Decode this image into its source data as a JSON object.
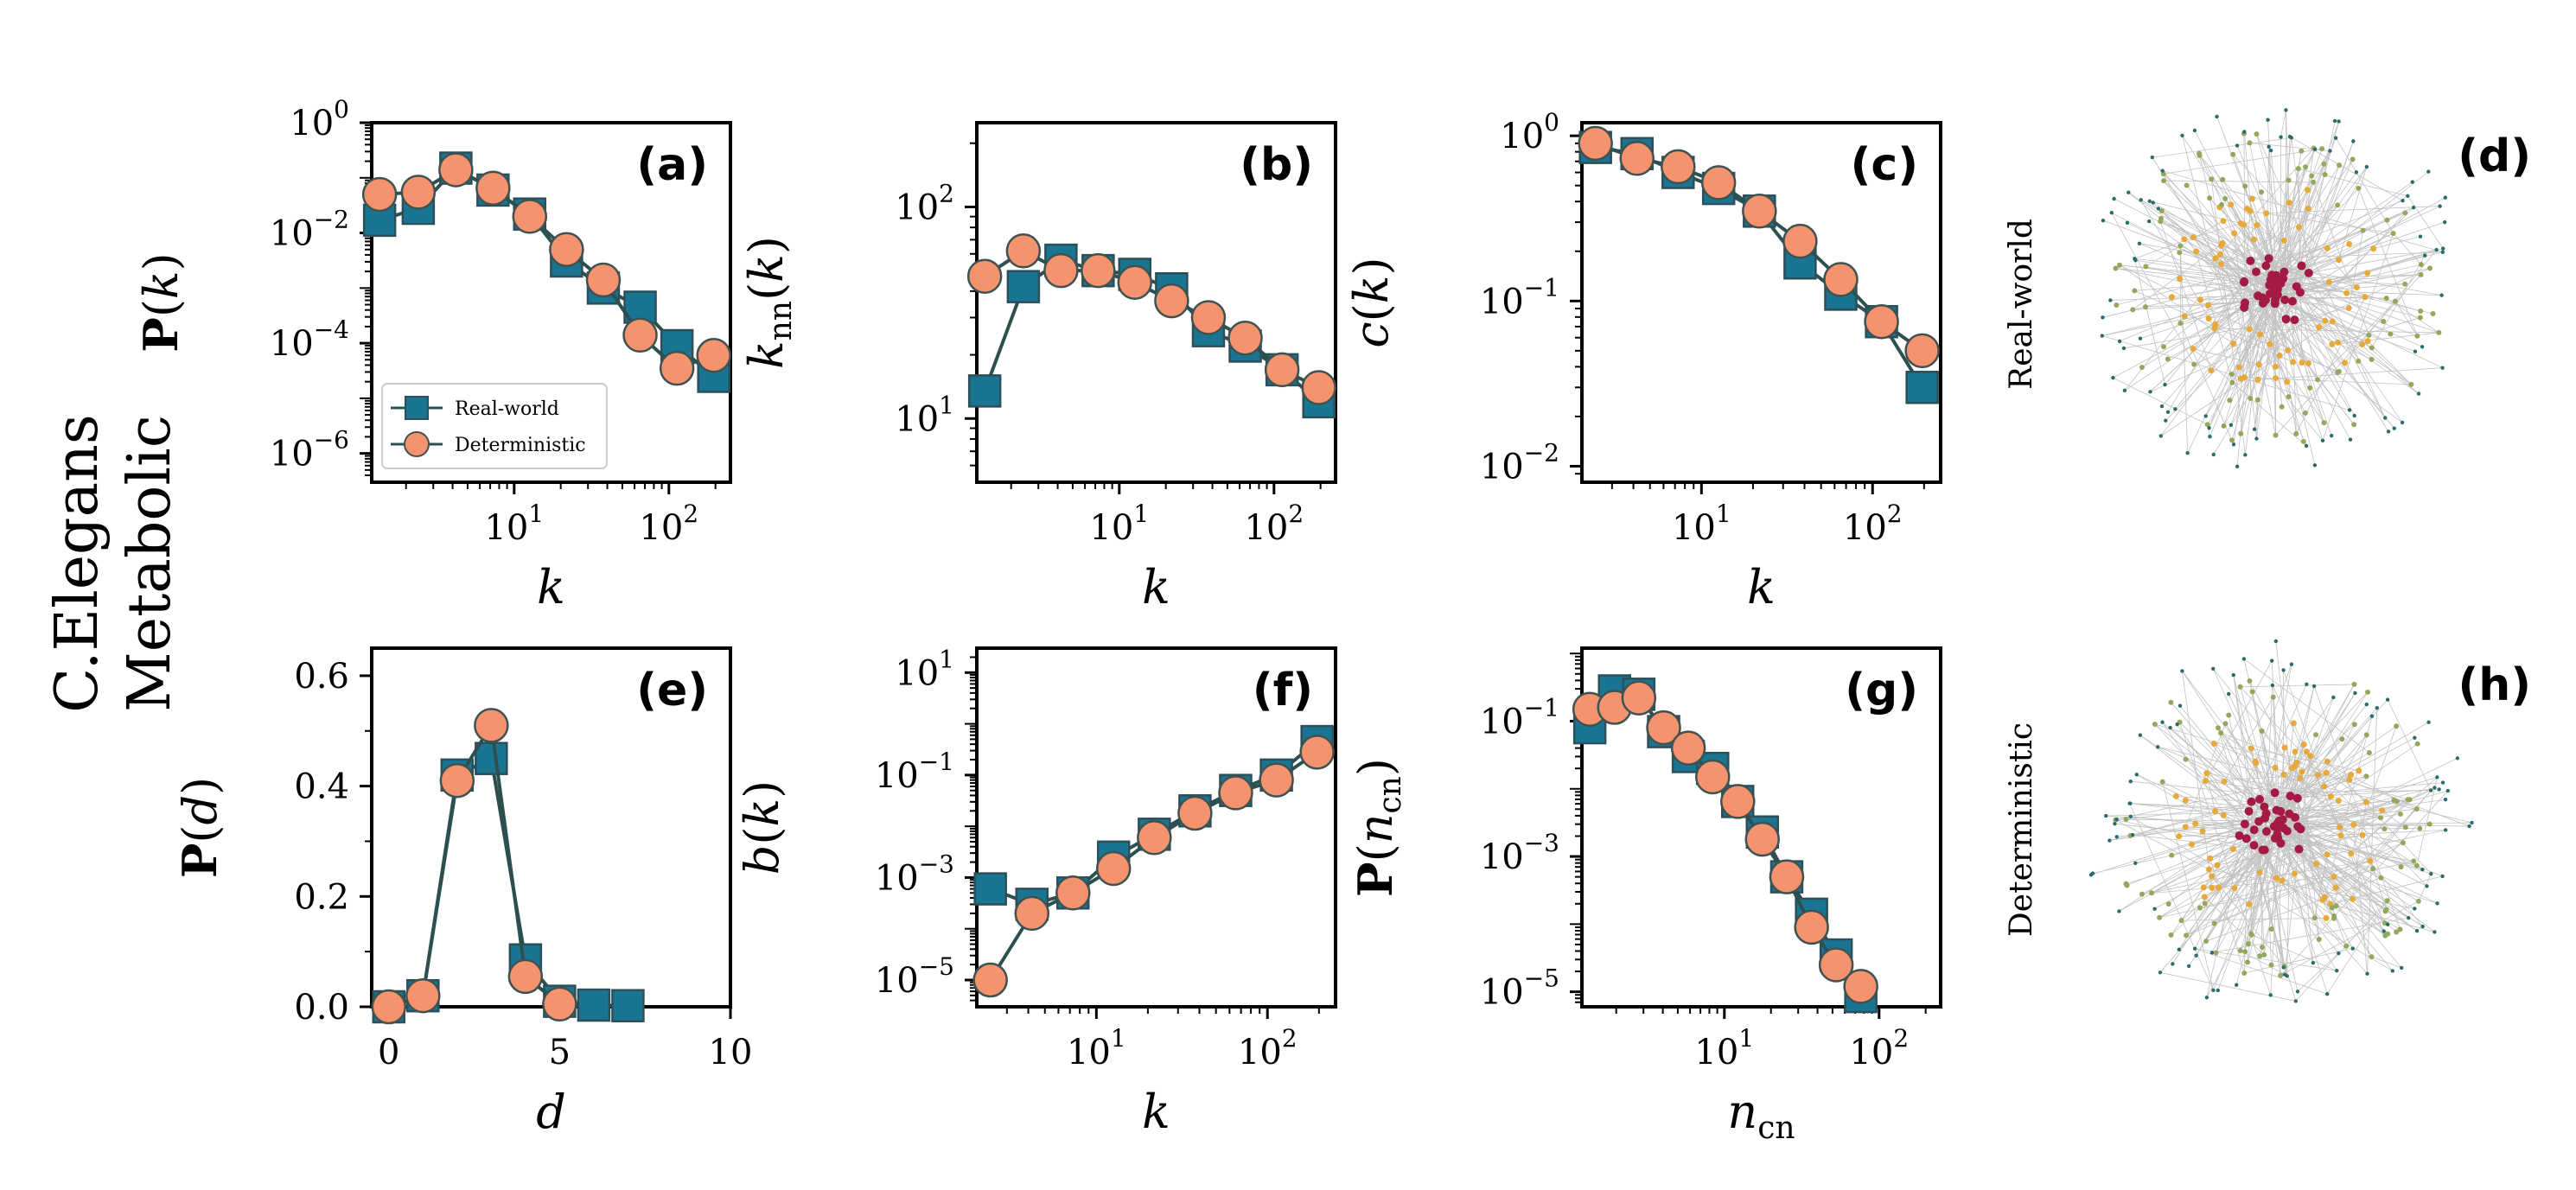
{
  "figure": {
    "row_label_line1": "C.Elegans",
    "row_label_line2": "Metabolic",
    "network_top_label": "Real-world",
    "network_bottom_label": "Deterministic",
    "network_top_tag": "(d)",
    "network_bottom_tag": "(h)",
    "colors": {
      "real": "#1a7592",
      "real_edge": "#2c4f5a",
      "det": "#f4936d",
      "det_edge": "#3e5252",
      "line": "#2c4f4f",
      "net_core": "#a31a45",
      "net_mid": "#e6a93a",
      "net_outer": "#93a85c",
      "net_far": "#2a6c6e"
    }
  },
  "chart_data": [
    {
      "id": "a",
      "tag": "(a)",
      "type": "line",
      "xscale": "log",
      "yscale": "log",
      "xlim": [
        1.2,
        250
      ],
      "ylim": [
        3e-07,
        1
      ],
      "xlabel": "k",
      "ylabel": "P(k)",
      "xticks": [
        {
          "v": 10,
          "label": "10",
          "exp": "1"
        },
        {
          "v": 100,
          "label": "10",
          "exp": "2"
        }
      ],
      "yticks": [
        {
          "v": 1,
          "label": "10",
          "exp": "0"
        },
        {
          "v": 0.01,
          "label": "10",
          "exp": "−2"
        },
        {
          "v": 0.0001,
          "label": "10",
          "exp": "−4"
        },
        {
          "v": 1e-06,
          "label": "10",
          "exp": "−6"
        }
      ],
      "legend": {
        "position": "lower-left",
        "entries": [
          "Real-world",
          "Deterministic"
        ]
      },
      "series": [
        {
          "name": "Real-world",
          "marker": "square",
          "x": [
            1.35,
            2.4,
            4.2,
            7.3,
            12.6,
            21.8,
            37.7,
            65.2,
            112.8,
            195
          ],
          "y": [
            0.017,
            0.028,
            0.15,
            0.06,
            0.022,
            0.0031,
            0.001,
            0.00045,
            9e-05,
            2.5e-05
          ]
        },
        {
          "name": "Deterministic",
          "marker": "circle",
          "x": [
            1.35,
            2.4,
            4.2,
            7.3,
            12.6,
            21.8,
            37.7,
            65.2,
            112.8,
            195
          ],
          "y": [
            0.05,
            0.055,
            0.14,
            0.065,
            0.02,
            0.005,
            0.0014,
            0.00014,
            3.5e-05,
            6e-05
          ]
        }
      ]
    },
    {
      "id": "b",
      "tag": "(b)",
      "type": "line",
      "xscale": "log",
      "yscale": "log",
      "xlim": [
        1.2,
        250
      ],
      "ylim": [
        5,
        250
      ],
      "xlabel": "k",
      "ylabel": "knn(k)",
      "xticks": [
        {
          "v": 10,
          "label": "10",
          "exp": "1"
        },
        {
          "v": 100,
          "label": "10",
          "exp": "2"
        }
      ],
      "yticks": [
        {
          "v": 100,
          "label": "10",
          "exp": "2"
        },
        {
          "v": 10,
          "label": "10",
          "exp": "1"
        }
      ],
      "series": [
        {
          "name": "Real-world",
          "marker": "square",
          "x": [
            1.35,
            2.4,
            4.2,
            7.3,
            12.6,
            21.8,
            37.7,
            65.2,
            112.8,
            195
          ],
          "y": [
            13.5,
            42,
            56,
            50,
            48,
            41,
            26,
            22,
            17,
            12
          ]
        },
        {
          "name": "Deterministic",
          "marker": "circle",
          "x": [
            1.35,
            2.4,
            4.2,
            7.3,
            12.6,
            21.8,
            37.7,
            65.2,
            112.8,
            195
          ],
          "y": [
            47,
            62,
            50,
            50,
            44,
            36,
            30,
            24,
            17,
            14
          ]
        }
      ]
    },
    {
      "id": "c",
      "tag": "(c)",
      "type": "line",
      "xscale": "log",
      "yscale": "log",
      "xlim": [
        2.0,
        250
      ],
      "ylim": [
        0.008,
        1.2
      ],
      "xlabel": "k",
      "ylabel": "c(k)",
      "xticks": [
        {
          "v": 10,
          "label": "10",
          "exp": "1"
        },
        {
          "v": 100,
          "label": "10",
          "exp": "2"
        }
      ],
      "yticks": [
        {
          "v": 1,
          "label": "10",
          "exp": "0"
        },
        {
          "v": 0.1,
          "label": "10",
          "exp": "−1"
        },
        {
          "v": 0.01,
          "label": "10",
          "exp": "−2"
        }
      ],
      "series": [
        {
          "name": "Real-world",
          "marker": "square",
          "x": [
            2.4,
            4.2,
            7.3,
            12.6,
            21.8,
            37.7,
            65.2,
            112.8,
            195
          ],
          "y": [
            0.85,
            0.78,
            0.6,
            0.48,
            0.35,
            0.17,
            0.11,
            0.075,
            0.03
          ]
        },
        {
          "name": "Deterministic",
          "marker": "circle",
          "x": [
            2.4,
            4.2,
            7.3,
            12.6,
            21.8,
            37.7,
            65.2,
            112.8,
            195
          ],
          "y": [
            0.9,
            0.73,
            0.65,
            0.52,
            0.35,
            0.23,
            0.135,
            0.075,
            0.05
          ]
        }
      ]
    },
    {
      "id": "e",
      "tag": "(e)",
      "type": "line",
      "xscale": "linear",
      "yscale": "linear",
      "xlim": [
        -0.5,
        10
      ],
      "ylim": [
        0,
        0.65
      ],
      "xlabel": "d",
      "ylabel": "P(d)",
      "xticks": [
        {
          "v": 0,
          "label": "0"
        },
        {
          "v": 5,
          "label": "5"
        },
        {
          "v": 10,
          "label": "10"
        }
      ],
      "yticks": [
        {
          "v": 0,
          "label": "0.0"
        },
        {
          "v": 0.2,
          "label": "0.2"
        },
        {
          "v": 0.4,
          "label": "0.4"
        },
        {
          "v": 0.6,
          "label": "0.6"
        }
      ],
      "series": [
        {
          "name": "Real-world",
          "marker": "square",
          "x": [
            0,
            1,
            2,
            3,
            4,
            5,
            6,
            7
          ],
          "y": [
            0.0,
            0.02,
            0.42,
            0.45,
            0.085,
            0.01,
            0.003,
            0.002
          ]
        },
        {
          "name": "Deterministic",
          "marker": "circle",
          "x": [
            0,
            1,
            2,
            3,
            4,
            5
          ],
          "y": [
            0.0,
            0.02,
            0.41,
            0.51,
            0.055,
            0.005
          ]
        }
      ]
    },
    {
      "id": "f",
      "tag": "(f)",
      "type": "line",
      "xscale": "log",
      "yscale": "log",
      "xlim": [
        2.0,
        250
      ],
      "ylim": [
        3e-06,
        30
      ],
      "xlabel": "k",
      "ylabel": "b(k)",
      "xticks": [
        {
          "v": 10,
          "label": "10",
          "exp": "1"
        },
        {
          "v": 100,
          "label": "10",
          "exp": "2"
        }
      ],
      "yticks": [
        {
          "v": 10,
          "label": "10",
          "exp": "1"
        },
        {
          "v": 0.1,
          "label": "10",
          "exp": "−1"
        },
        {
          "v": 0.001,
          "label": "10",
          "exp": "−3"
        },
        {
          "v": 1e-05,
          "label": "10",
          "exp": "−5"
        }
      ],
      "series": [
        {
          "name": "Real-world",
          "marker": "square",
          "x": [
            2.4,
            4.2,
            7.3,
            12.6,
            21.8,
            37.7,
            65.2,
            112.8,
            195
          ],
          "y": [
            0.0006,
            0.0003,
            0.0005,
            0.0025,
            0.007,
            0.02,
            0.05,
            0.1,
            0.45
          ]
        },
        {
          "name": "Deterministic",
          "marker": "circle",
          "x": [
            2.4,
            4.2,
            7.3,
            12.6,
            21.8,
            37.7,
            65.2,
            112.8,
            195
          ],
          "y": [
            1e-05,
            0.0002,
            0.0005,
            0.0015,
            0.006,
            0.018,
            0.045,
            0.08,
            0.28
          ]
        }
      ]
    },
    {
      "id": "g",
      "tag": "(g)",
      "type": "line",
      "xscale": "log",
      "yscale": "log",
      "xlim": [
        1.2,
        250
      ],
      "ylim": [
        6e-06,
        1.2
      ],
      "xlabel": "ncn",
      "ylabel": "P(ncn)",
      "xticks": [
        {
          "v": 10,
          "label": "10",
          "exp": "1"
        },
        {
          "v": 100,
          "label": "10",
          "exp": "2"
        }
      ],
      "yticks": [
        {
          "v": 0.1,
          "label": "10",
          "exp": "−1"
        },
        {
          "v": 0.001,
          "label": "10",
          "exp": "−3"
        },
        {
          "v": 1e-05,
          "label": "10",
          "exp": "−5"
        }
      ],
      "series": [
        {
          "name": "Real-world",
          "marker": "square",
          "x": [
            1.35,
            1.95,
            2.8,
            4.05,
            5.85,
            8.4,
            12.2,
            17.6,
            25.3,
            36.6,
            52.8,
            76.2
          ],
          "y": [
            0.08,
            0.28,
            0.25,
            0.07,
            0.03,
            0.02,
            0.0065,
            0.0023,
            0.0005,
            0.00014,
            3.5e-05,
            8.5e-06
          ]
        },
        {
          "name": "Deterministic",
          "marker": "circle",
          "x": [
            1.35,
            1.95,
            2.8,
            4.05,
            5.85,
            8.4,
            12.2,
            17.6,
            25.3,
            36.6,
            52.8,
            76.2
          ],
          "y": [
            0.15,
            0.16,
            0.22,
            0.08,
            0.04,
            0.015,
            0.0065,
            0.0018,
            0.0005,
            9e-05,
            2.5e-05,
            1.2e-05
          ]
        }
      ]
    }
  ]
}
